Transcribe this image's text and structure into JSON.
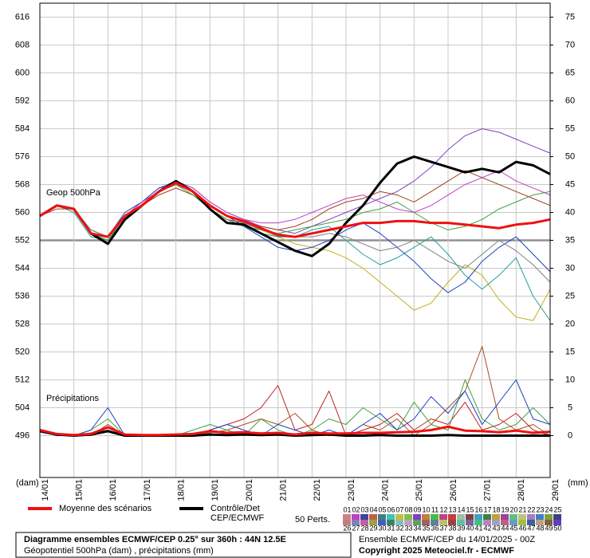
{
  "chart_data": {
    "type": "line",
    "title": "Diagramme ensembles ECMWF/CEP 0.25° sur 360h : 44N 12.5E",
    "subtitle": "Géopotentiel 500hPa (dam) , précipitations (mm)",
    "run_info": "Ensemble ECMWF/CEP du 14/01/2025 - 00Z",
    "copyright": "Copyright 2025 Meteociel.fr - ECMWF",
    "y_label": "(dam)",
    "y2_label": "(mm)",
    "annotations": [
      "Geop 500hPa",
      "Précipitations"
    ],
    "grid": true,
    "ref_line": 552,
    "xlim": [
      0,
      360
    ],
    "xticks": [
      {
        "value": 0,
        "label": "14/01"
      },
      {
        "value": 24,
        "label": "15/01"
      },
      {
        "value": 48,
        "label": "16/01"
      },
      {
        "value": 72,
        "label": "17/01"
      },
      {
        "value": 96,
        "label": "18/01"
      },
      {
        "value": 120,
        "label": "19/01"
      },
      {
        "value": 144,
        "label": "20/01"
      },
      {
        "value": 168,
        "label": "21/01"
      },
      {
        "value": 192,
        "label": "22/01"
      },
      {
        "value": 216,
        "label": "23/01"
      },
      {
        "value": 240,
        "label": "24/01"
      },
      {
        "value": 264,
        "label": "25/01"
      },
      {
        "value": 288,
        "label": "26/01"
      },
      {
        "value": 312,
        "label": "27/01"
      },
      {
        "value": 336,
        "label": "28/01"
      },
      {
        "value": 360,
        "label": "29/01"
      }
    ],
    "ylim": [
      484,
      620
    ],
    "yticks": [
      496,
      504,
      512,
      520,
      528,
      536,
      544,
      552,
      560,
      568,
      576,
      584,
      592,
      600,
      608,
      616
    ],
    "y2lim": [
      -7.5,
      77.5
    ],
    "y2ticks": [
      0,
      5,
      10,
      15,
      20,
      25,
      30,
      35,
      40,
      45,
      50,
      55,
      60,
      65,
      70,
      75
    ],
    "x": [
      0,
      12,
      24,
      36,
      48,
      60,
      72,
      84,
      96,
      108,
      120,
      132,
      144,
      156,
      168,
      180,
      192,
      204,
      216,
      228,
      240,
      252,
      264,
      276,
      288,
      300,
      312,
      324,
      336,
      348,
      360
    ],
    "legend": {
      "mean": "Moyenne des scénarios",
      "control": [
        "Contrôle/Det",
        "CEP/ECMWF"
      ],
      "perts": "50 Perts."
    },
    "members": {
      "labels": [
        "01",
        "02",
        "03",
        "04",
        "05",
        "06",
        "07",
        "08",
        "09",
        "10",
        "11",
        "12",
        "13",
        "14",
        "15",
        "16",
        "17",
        "18",
        "19",
        "20",
        "21",
        "22",
        "23",
        "24",
        "25",
        "26",
        "27",
        "28",
        "29",
        "30",
        "31",
        "32",
        "33",
        "34",
        "35",
        "36",
        "37",
        "38",
        "39",
        "40",
        "41",
        "42",
        "43",
        "44",
        "45",
        "46",
        "47",
        "48",
        "49",
        "50"
      ],
      "colors": [
        "#d08080",
        "#c040c0",
        "#4040a0",
        "#c06040",
        "#408080",
        "#40c0c0",
        "#c0c040",
        "#80c040",
        "#8040c0",
        "#c08040",
        "#40c040",
        "#c04080",
        "#c04040",
        "#a0c0a0",
        "#804040",
        "#40a0c0",
        "#408040",
        "#c0a040",
        "#a040a0",
        "#60c080",
        "#c0c080",
        "#a080c0",
        "#4080c0",
        "#80a040",
        "#404080",
        "#c08080",
        "#8080c0",
        "#c060a0",
        "#a0a040",
        "#4060c0",
        "#408060",
        "#80c0c0",
        "#c0a0c0",
        "#60a060",
        "#a06060",
        "#6080a0",
        "#c0c060",
        "#a04040",
        "#60c0a0",
        "#8060a0",
        "#40c080",
        "#c080c0",
        "#a0a0c0",
        "#c06080",
        "#60a0c0",
        "#a0c040",
        "#4060a0",
        "#c0a080",
        "#806040",
        "#6040c0"
      ]
    },
    "series": [
      {
        "color": "#8040c0",
        "width": 1,
        "values": [
          559,
          562,
          561,
          554,
          552,
          559,
          563,
          567,
          569,
          567,
          563,
          560,
          558,
          556,
          555,
          554,
          556,
          558,
          560,
          562,
          564,
          566,
          569,
          573,
          578,
          582,
          584,
          583,
          581,
          579,
          577
        ]
      },
      {
        "color": "#c0b020",
        "width": 1,
        "values": [
          559,
          562,
          561,
          555,
          553,
          560,
          563,
          566,
          568,
          566,
          562,
          559,
          557,
          555,
          553,
          551,
          550,
          549,
          547,
          544,
          540,
          536,
          532,
          534,
          540,
          545,
          542,
          535,
          530,
          529,
          538
        ]
      },
      {
        "color": "#20a0a0",
        "width": 1,
        "values": [
          559,
          562,
          560,
          553,
          552,
          558,
          562,
          566,
          568,
          566,
          561,
          558,
          556,
          554,
          553,
          553,
          555,
          556,
          552,
          548,
          545,
          547,
          550,
          553,
          548,
          542,
          538,
          542,
          547,
          536,
          529
        ]
      },
      {
        "color": "#a04020",
        "width": 1,
        "values": [
          559,
          561,
          561,
          554,
          553,
          559,
          562,
          565,
          567,
          565,
          561,
          558,
          557,
          556,
          555,
          556,
          558,
          561,
          563,
          564,
          566,
          565,
          563,
          566,
          569,
          572,
          570,
          568,
          566,
          564,
          562
        ]
      },
      {
        "color": "#2040c0",
        "width": 1,
        "values": [
          559,
          562,
          561,
          555,
          553,
          560,
          563,
          567,
          568,
          566,
          562,
          559,
          556,
          553,
          550,
          549,
          550,
          552,
          555,
          557,
          554,
          550,
          546,
          541,
          537,
          540,
          546,
          550,
          553,
          548,
          543
        ]
      },
      {
        "color": "#40a040",
        "width": 1,
        "values": [
          559,
          562,
          561,
          554,
          552,
          559,
          562,
          566,
          568,
          565,
          561,
          558,
          556,
          555,
          554,
          555,
          556,
          557,
          558,
          560,
          561,
          563,
          560,
          557,
          555,
          556,
          558,
          561,
          563,
          565,
          566
        ]
      },
      {
        "color": "#c040c0",
        "width": 1,
        "values": [
          559,
          562,
          561,
          554,
          553,
          559,
          563,
          566,
          569,
          567,
          563,
          560,
          558,
          557,
          557,
          558,
          560,
          562,
          564,
          565,
          563,
          561,
          560,
          562,
          565,
          568,
          570,
          572,
          569,
          567,
          565
        ]
      },
      {
        "color": "#808080",
        "width": 1,
        "values": [
          559,
          562,
          561,
          555,
          553,
          559,
          562,
          566,
          568,
          566,
          562,
          559,
          557,
          555,
          554,
          553,
          553,
          554,
          553,
          551,
          549,
          550,
          552,
          549,
          546,
          544,
          548,
          552,
          549,
          545,
          540
        ]
      },
      {
        "color": "#a05020",
        "width": 1,
        "axis": "y2",
        "values": [
          1,
          0,
          0,
          0.5,
          1,
          0,
          0,
          0,
          0,
          0,
          0.5,
          1,
          2,
          3,
          2,
          4,
          1,
          0,
          0,
          2,
          1,
          3,
          0,
          2,
          5,
          8,
          16,
          3,
          1,
          2,
          0
        ]
      },
      {
        "color": "#c02020",
        "width": 1,
        "axis": "y2",
        "values": [
          1,
          0,
          0,
          0,
          2,
          0,
          0,
          0,
          0,
          0,
          1,
          2,
          3,
          5,
          9,
          1,
          2,
          8,
          0,
          1,
          2,
          4,
          1,
          3,
          2,
          6,
          1,
          2,
          4,
          1,
          0
        ]
      },
      {
        "color": "#40a040",
        "width": 1,
        "axis": "y2",
        "values": [
          1,
          0,
          0,
          1,
          3,
          0,
          0,
          0,
          0,
          1,
          2,
          1,
          0,
          3,
          1,
          0,
          1,
          3,
          2,
          5,
          3,
          1,
          6,
          2,
          1,
          10,
          3,
          1,
          2,
          5,
          2
        ]
      },
      {
        "color": "#2040c0",
        "width": 1,
        "axis": "y2",
        "values": [
          1,
          0,
          0,
          1,
          5,
          0,
          0,
          0,
          0,
          0,
          1,
          2,
          1,
          0,
          2,
          1,
          0,
          1,
          0,
          2,
          4,
          1,
          3,
          7,
          4,
          8,
          2,
          6,
          10,
          3,
          2
        ]
      },
      {
        "color": "#000000",
        "width": 3,
        "values": [
          559,
          562,
          561,
          554,
          551,
          558,
          562,
          566,
          569,
          566,
          561,
          557,
          556.5,
          554,
          551.5,
          549,
          547.5,
          551,
          557,
          562,
          568.5,
          574,
          576,
          574.5,
          573,
          571.5,
          572.5,
          571.5,
          574.5,
          573.5,
          571
        ]
      },
      {
        "color": "#000000",
        "width": 3,
        "axis": "y2",
        "values": [
          0.8,
          0.2,
          0,
          0.2,
          0.8,
          0,
          0,
          0,
          0,
          0,
          0.2,
          0.1,
          0.2,
          0.1,
          0.2,
          0,
          0.1,
          0.2,
          0,
          0,
          0.1,
          0,
          0,
          0,
          0.1,
          0,
          0,
          0,
          0,
          0,
          0
        ]
      },
      {
        "color": "#ee1111",
        "width": 3,
        "values": [
          559,
          562,
          561,
          554,
          553,
          559,
          562,
          566,
          568.5,
          566,
          562,
          559,
          557.5,
          555.5,
          553.5,
          553,
          554,
          555,
          556,
          557,
          557,
          557.5,
          557.5,
          557,
          557,
          556.5,
          556,
          555.5,
          556.5,
          557,
          558
        ]
      },
      {
        "color": "#ee1111",
        "width": 3,
        "axis": "y2",
        "values": [
          1.0,
          0.3,
          0.1,
          0.3,
          1.5,
          0.2,
          0.1,
          0.1,
          0.2,
          0.3,
          0.8,
          0.5,
          0.6,
          0.4,
          0.5,
          0.2,
          0.5,
          0.4,
          0.4,
          0.5,
          0.5,
          0.6,
          0.7,
          1.0,
          1.6,
          0.9,
          0.8,
          0.6,
          0.9,
          0.5,
          0.7
        ]
      }
    ]
  }
}
